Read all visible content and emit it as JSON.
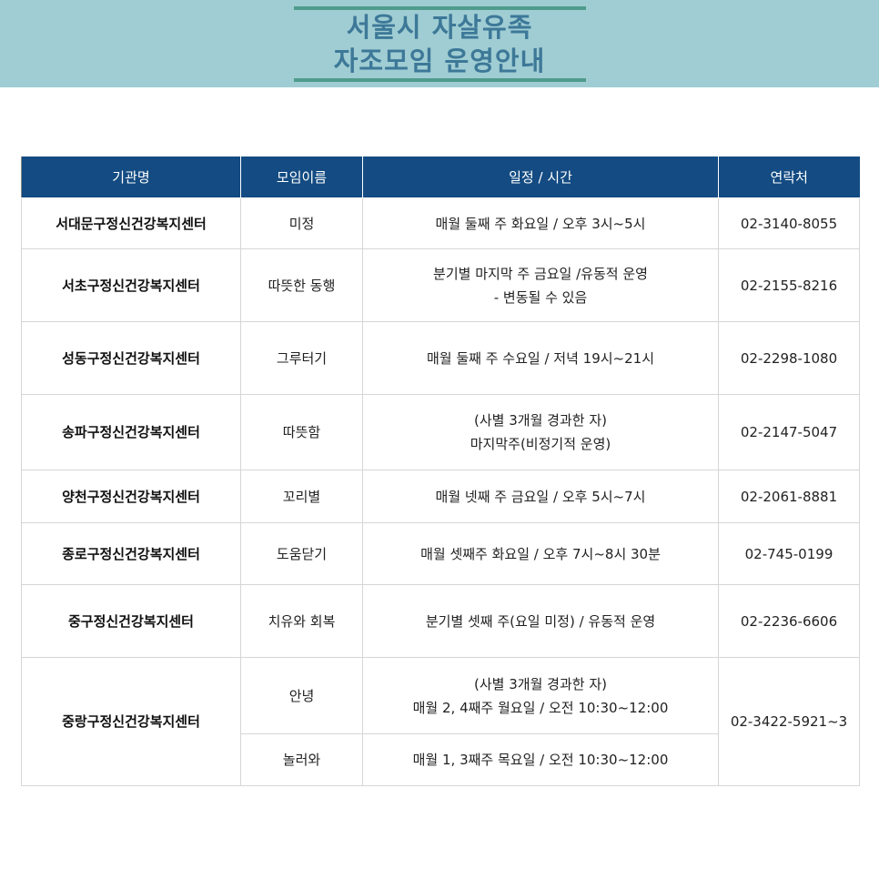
{
  "header": {
    "title_line1": "서울시 자살유족",
    "title_line2": "자조모임 운영안내"
  },
  "colors": {
    "banner": "#9fcdd3",
    "title": "#3d7898",
    "table_header": "#134b82"
  },
  "table": {
    "columns": [
      "기관명",
      "모임이름",
      "일정 / 시간",
      "연락처"
    ],
    "rows": [
      {
        "org": "서대문구정신건강복지센터",
        "group": "미정",
        "schedule": [
          "매월 둘째 주 화요일 / 오후 3시~5시"
        ],
        "contact": "02-3140-8055"
      },
      {
        "org": "서초구정신건강복지센터",
        "group": "따뜻한 동행",
        "schedule": [
          "분기별 마지막 주 금요일 /유동적 운영",
          "- 변동될 수 있음"
        ],
        "contact": "02-2155-8216"
      },
      {
        "org": "성동구정신건강복지센터",
        "group": "그루터기",
        "schedule": [
          "매월 둘째 주 수요일 / 저녁 19시~21시"
        ],
        "contact": "02-2298-1080"
      },
      {
        "org": "송파구정신건강복지센터",
        "group": "따뜻함",
        "schedule": [
          "(사별 3개월 경과한 자)",
          "마지막주(비정기적 운영)"
        ],
        "contact": "02-2147-5047"
      },
      {
        "org": "양천구정신건강복지센터",
        "group": "꼬리별",
        "schedule": [
          "매월 넷째 주 금요일 / 오후 5시~7시"
        ],
        "contact": "02-2061-8881"
      },
      {
        "org": "종로구정신건강복지센터",
        "group": "도움닫기",
        "schedule": [
          "매월 셋째주 화요일 / 오후 7시~8시 30분"
        ],
        "contact": "02-745-0199"
      },
      {
        "org": "중구정신건강복지센터",
        "group": "치유와 회복",
        "schedule": [
          "분기별 셋째 주(요일 미정) / 유동적 운영"
        ],
        "contact": "02-2236-6606"
      }
    ],
    "merged": {
      "org": "중랑구정신건강복지센터",
      "contact": "02-3422-5921~3",
      "groups": [
        {
          "group": "안녕",
          "schedule": [
            "(사별 3개월 경과한 자)",
            "매월 2, 4째주 월요일 / 오전 10:30~12:00"
          ]
        },
        {
          "group": "놀러와",
          "schedule": [
            "매월 1, 3째주 목요일 / 오전 10:30~12:00"
          ]
        }
      ]
    }
  }
}
